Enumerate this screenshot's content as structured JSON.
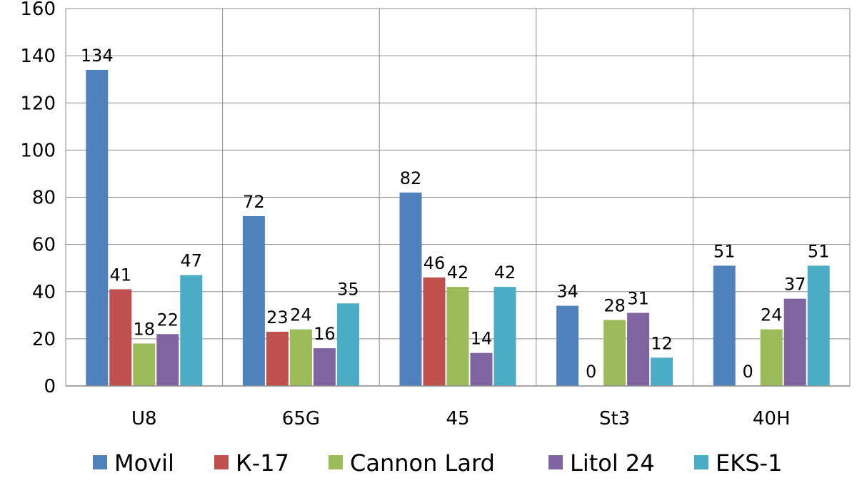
{
  "chart_data": {
    "type": "bar",
    "title": "",
    "xlabel": "",
    "ylabel": "",
    "ylim": [
      0,
      160
    ],
    "yticks": [
      0,
      20,
      40,
      60,
      80,
      100,
      120,
      140,
      160
    ],
    "ytick_labels": [
      "0",
      "20",
      "40",
      "60",
      "80",
      "100",
      "120",
      "140",
      "160"
    ],
    "grid": true,
    "legend_position": "bottom",
    "categories": [
      "U8",
      "65G",
      "45",
      "St3",
      "40H"
    ],
    "series": [
      {
        "name": "Movil",
        "color": "#4F81BD",
        "values": [
          134,
          72,
          82,
          34,
          51
        ],
        "labels": [
          "134",
          "72",
          "82",
          "34",
          "51"
        ]
      },
      {
        "name": "К-17",
        "color": "#C0504D",
        "values": [
          41,
          23,
          46,
          0,
          0
        ],
        "labels": [
          "41",
          "23",
          "46",
          "0",
          "0"
        ]
      },
      {
        "name": "Cannon Lard",
        "color": "#9BBB59",
        "values": [
          18,
          24,
          42,
          28,
          24
        ],
        "labels": [
          "18",
          "24",
          "42",
          "28",
          "24"
        ]
      },
      {
        "name": "Litol 24",
        "color": "#8064A2",
        "values": [
          22,
          16,
          14,
          31,
          37
        ],
        "labels": [
          "22",
          "16",
          "14",
          "31",
          "37"
        ]
      },
      {
        "name": "EKS-1",
        "color": "#4BACC6",
        "values": [
          47,
          35,
          42,
          12,
          51
        ],
        "labels": [
          "47",
          "35",
          "42",
          "12",
          "51"
        ]
      }
    ]
  }
}
